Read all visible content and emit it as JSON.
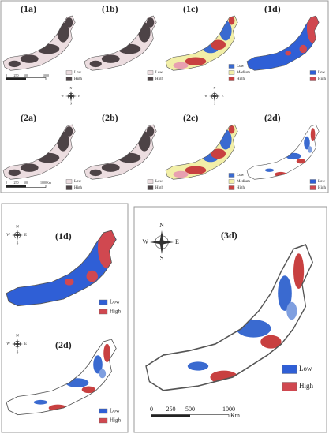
{
  "top_figure": {
    "row1": [
      {
        "label": "(1a)",
        "legend": [
          "Low",
          "High"
        ]
      },
      {
        "label": "(1b)",
        "legend": [
          "Low",
          "High"
        ]
      },
      {
        "label": "(1c)",
        "legend": [
          "Low",
          "Medium",
          "High"
        ]
      },
      {
        "label": "(1d)",
        "legend": [
          "Low",
          "High"
        ]
      }
    ],
    "row2": [
      {
        "label": "(2a)",
        "legend": [
          "Low",
          "High"
        ]
      },
      {
        "label": "(2b)",
        "legend": [
          "Low",
          "High"
        ]
      },
      {
        "label": "(2c)",
        "legend": [
          "Low",
          "Medium",
          "High"
        ]
      },
      {
        "label": "(2d)",
        "legend": [
          "Low",
          "High"
        ]
      }
    ],
    "scale_bar_1": [
      "0",
      "250",
      "500",
      "1000"
    ],
    "scale_bar_2": [
      "0",
      "250",
      "500",
      "1000Km"
    ],
    "compasses": [
      [
        "N",
        "W",
        "E",
        "S"
      ],
      [
        "N",
        "W",
        "E",
        "S"
      ]
    ]
  },
  "bottom_left": {
    "panels": [
      {
        "label": "(1d)",
        "legend": [
          "Low",
          "High"
        ],
        "compass": [
          "N",
          "W",
          "E",
          "S"
        ]
      },
      {
        "label": "(2d)",
        "legend": [
          "Low",
          "High"
        ],
        "compass": [
          "N",
          "W",
          "E",
          "S"
        ]
      }
    ]
  },
  "bottom_right": {
    "label": "(3d)",
    "legend": [
      "Low",
      "High"
    ],
    "compass": [
      "N",
      "W",
      "E",
      "S"
    ],
    "scale_bar": [
      "0",
      "250",
      "500",
      "1000"
    ],
    "unit": "Km"
  }
}
